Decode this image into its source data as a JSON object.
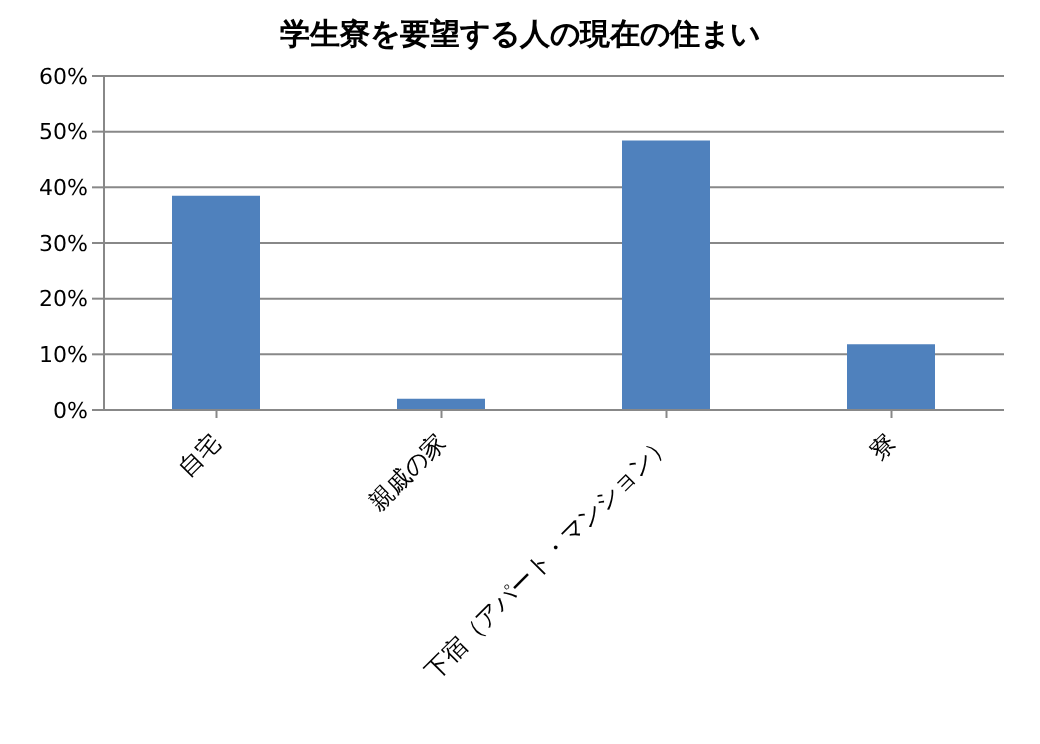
{
  "chart_data": {
    "type": "bar",
    "title": "学生寮を要望する人の現在の住まい",
    "categories": [
      "自宅",
      "親戚の家",
      "下宿（アパート・マンション）",
      "寮"
    ],
    "values": [
      38.5,
      2,
      48.4,
      11.8
    ],
    "color": "#4f81bd",
    "ylim": [
      0,
      60
    ],
    "yticks": [
      {
        "value": 0,
        "label": "0%"
      },
      {
        "value": 10,
        "label": "10%"
      },
      {
        "value": 20,
        "label": "20%"
      },
      {
        "value": 30,
        "label": "30%"
      },
      {
        "value": 40,
        "label": "40%"
      },
      {
        "value": 50,
        "label": "50%"
      },
      {
        "value": 60,
        "label": "60%"
      }
    ],
    "grid": "y",
    "legend": false
  }
}
